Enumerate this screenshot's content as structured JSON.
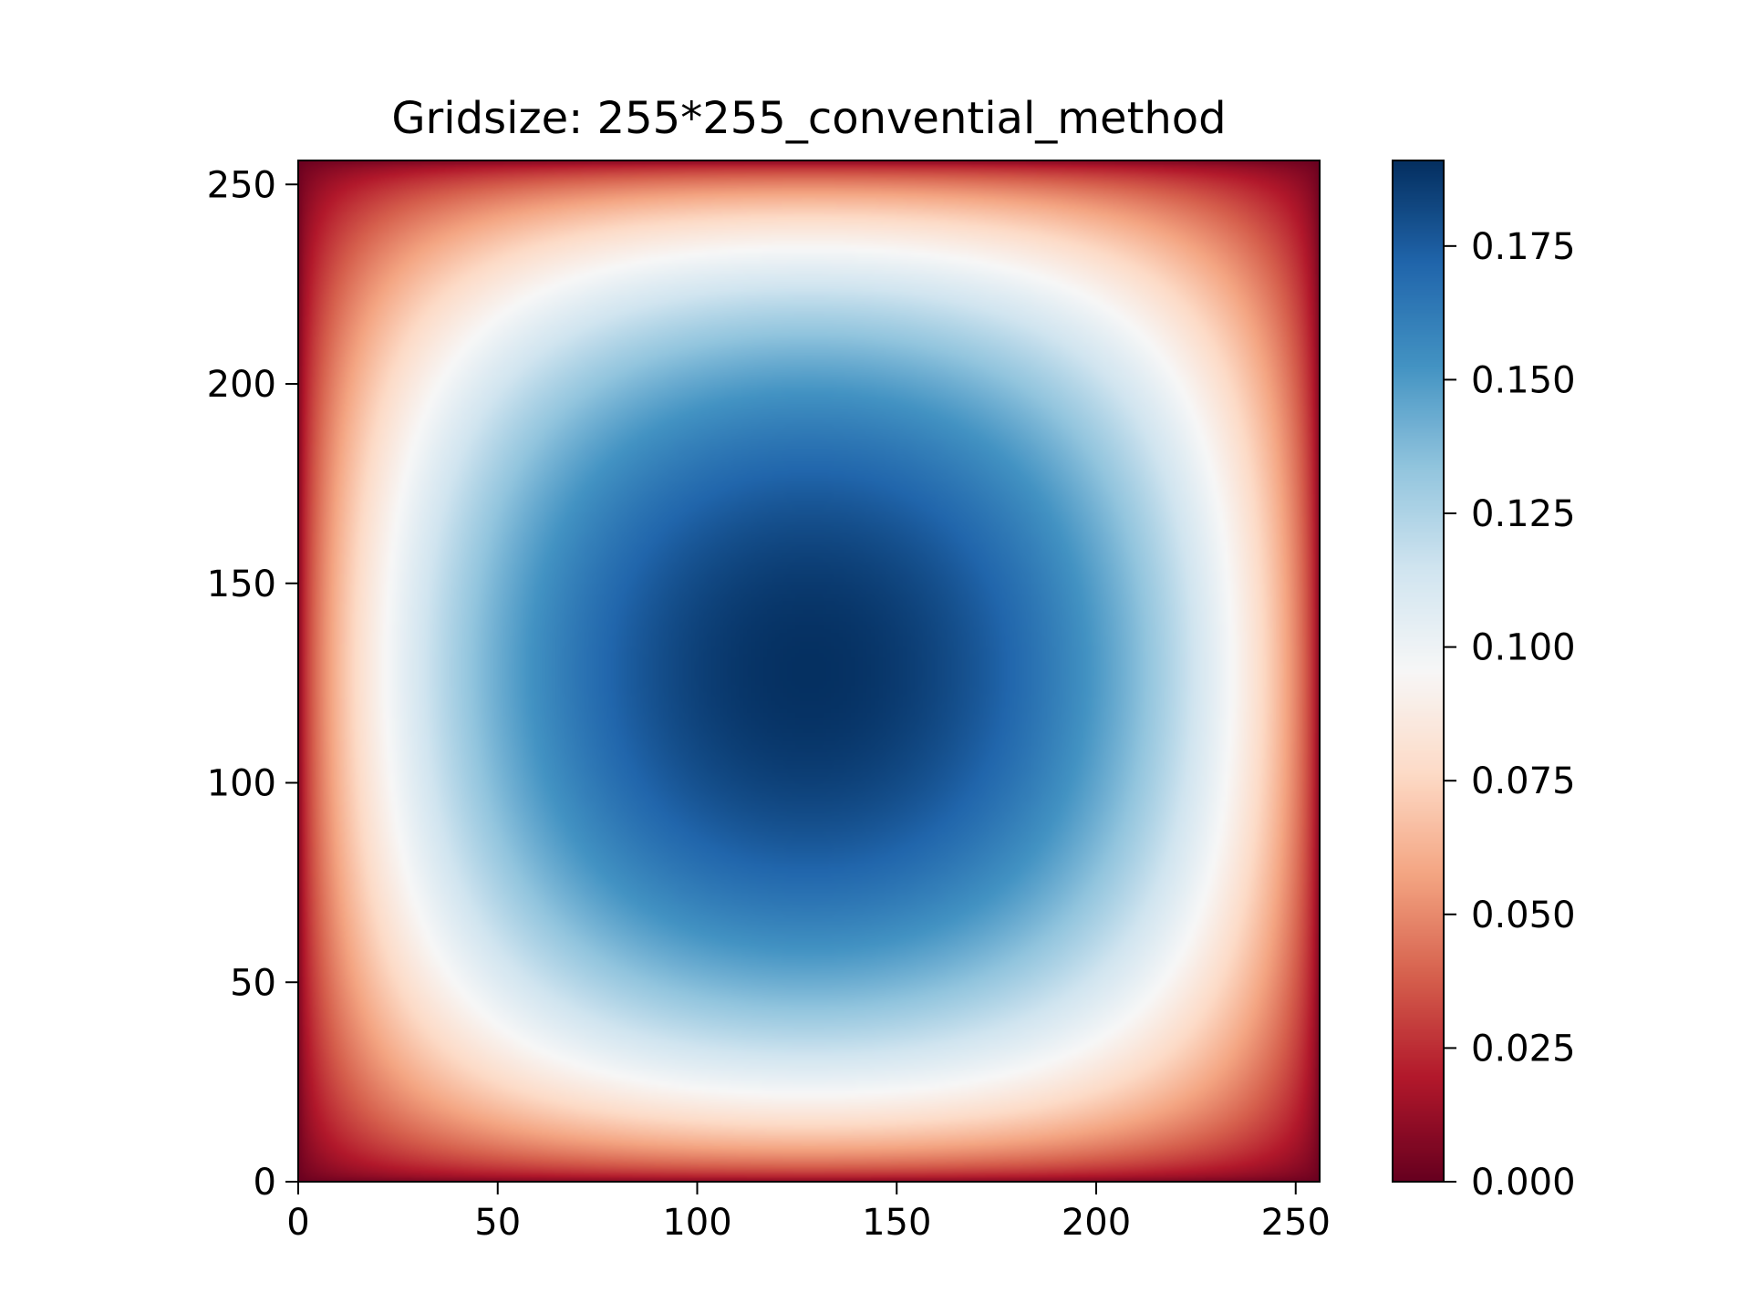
{
  "chart_data": {
    "type": "heatmap",
    "title": "Gridsize: 255*255_convential_method",
    "xlabel": "",
    "ylabel": "",
    "grid_size": [
      255,
      255
    ],
    "xlim": [
      0,
      256
    ],
    "ylim": [
      0,
      256
    ],
    "x_ticks": [
      0,
      50,
      100,
      150,
      200,
      250
    ],
    "y_ticks": [
      0,
      50,
      100,
      150,
      200,
      250
    ],
    "x_tick_labels": [
      "0",
      "50",
      "100",
      "150",
      "200",
      "250"
    ],
    "y_tick_labels": [
      "0",
      "50",
      "100",
      "150",
      "200",
      "250"
    ],
    "colormap": "RdBu",
    "colormap_stops": [
      "#67001f",
      "#b2182b",
      "#d6604d",
      "#f4a582",
      "#fddbc7",
      "#f7f7f7",
      "#d1e5f0",
      "#92c5de",
      "#4393c3",
      "#2166ac",
      "#053061"
    ],
    "value_range": [
      0.0,
      0.191
    ],
    "max_value": 0.191,
    "max_location": [
      128,
      128
    ],
    "boundary_value": 0.0,
    "colorbar": {
      "ticks": [
        0.0,
        0.025,
        0.05,
        0.075,
        0.1,
        0.125,
        0.15,
        0.175
      ],
      "tick_labels": [
        "0.000",
        "0.025",
        "0.050",
        "0.075",
        "0.100",
        "0.125",
        "0.150",
        "0.175"
      ]
    }
  }
}
